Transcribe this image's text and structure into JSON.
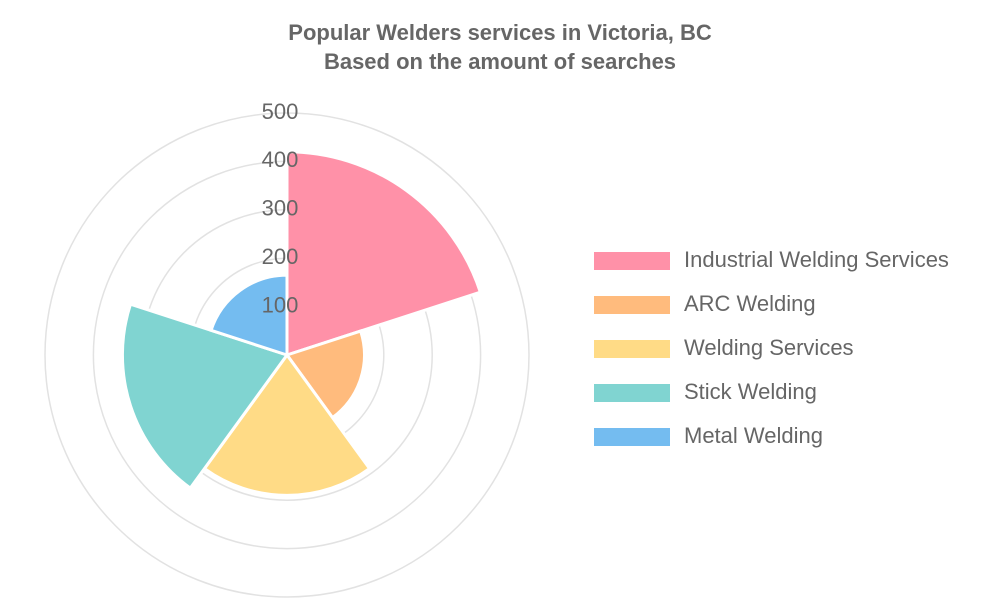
{
  "chart_data": {
    "type": "polar_area",
    "title": "Popular Welders services in Victoria, BC",
    "subtitle": "Based on the amount of searches",
    "categories": [
      "Industrial Welding Services",
      "ARC Welding",
      "Welding Services",
      "Stick Welding",
      "Metal Welding"
    ],
    "values": [
      420,
      160,
      290,
      340,
      165
    ],
    "colors": [
      "#ff91a8",
      "#ffbb7d",
      "#ffdb86",
      "#80d4d1",
      "#74bcf0"
    ],
    "rlim": [
      0,
      500
    ],
    "rticks": [
      100,
      200,
      300,
      400,
      500
    ],
    "grid": true,
    "legend": "right"
  }
}
